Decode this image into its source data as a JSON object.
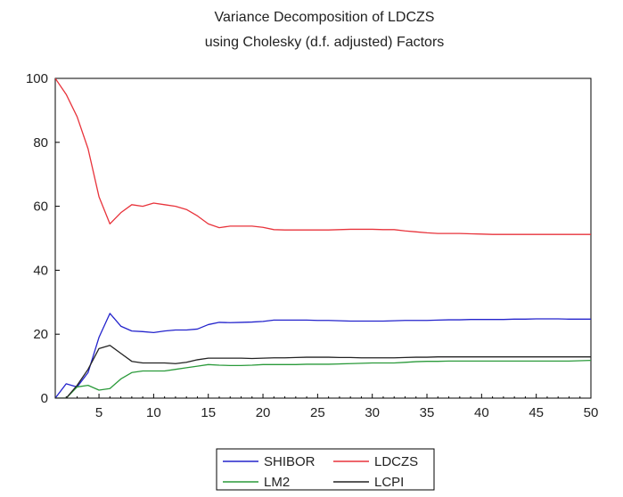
{
  "chart_data": {
    "type": "line",
    "title_lines": [
      "Variance Decomposition of LDCZS",
      "using Cholesky (d.f. adjusted) Factors"
    ],
    "xlabel": "",
    "ylabel": "",
    "xlim": [
      1,
      50
    ],
    "ylim": [
      0,
      100
    ],
    "xticks": [
      5,
      10,
      15,
      20,
      25,
      30,
      35,
      40,
      45,
      50
    ],
    "yticks": [
      0,
      20,
      40,
      60,
      80,
      100
    ],
    "grid": false,
    "legend_position": "bottom-center",
    "x": [
      1,
      2,
      3,
      4,
      5,
      6,
      7,
      8,
      9,
      10,
      11,
      12,
      13,
      14,
      15,
      16,
      17,
      18,
      19,
      20,
      21,
      22,
      23,
      24,
      25,
      26,
      27,
      28,
      29,
      30,
      31,
      32,
      33,
      34,
      35,
      36,
      37,
      38,
      39,
      40,
      41,
      42,
      43,
      44,
      45,
      46,
      47,
      48,
      49,
      50
    ],
    "series": [
      {
        "name": "SHIBOR",
        "color": "#2323cc",
        "values": [
          0,
          4.5,
          3.5,
          8,
          19,
          26.5,
          22.5,
          21,
          20.8,
          20.5,
          21,
          21.3,
          21.3,
          21.6,
          23,
          23.7,
          23.6,
          23.7,
          23.8,
          24,
          24.4,
          24.4,
          24.4,
          24.4,
          24.3,
          24.3,
          24.2,
          24.1,
          24.1,
          24.1,
          24.1,
          24.2,
          24.3,
          24.3,
          24.3,
          24.4,
          24.5,
          24.5,
          24.6,
          24.6,
          24.6,
          24.6,
          24.7,
          24.7,
          24.8,
          24.8,
          24.8,
          24.7,
          24.7,
          24.7
        ]
      },
      {
        "name": "LDCZS",
        "color": "#e8333b",
        "values": [
          100,
          95,
          88,
          78,
          63,
          54.5,
          58,
          60.5,
          60,
          61,
          60.5,
          60,
          59,
          57,
          54.5,
          53.3,
          53.8,
          53.8,
          53.8,
          53.4,
          52.7,
          52.6,
          52.6,
          52.6,
          52.6,
          52.6,
          52.7,
          52.8,
          52.8,
          52.8,
          52.7,
          52.7,
          52.3,
          52,
          51.7,
          51.5,
          51.5,
          51.5,
          51.4,
          51.3,
          51.2,
          51.2,
          51.2,
          51.2,
          51.2,
          51.2,
          51.2,
          51.2,
          51.2,
          51.2
        ]
      },
      {
        "name": "LM2",
        "color": "#2a9a3a",
        "values": [
          0,
          0,
          3.5,
          4,
          2.5,
          3,
          6,
          8,
          8.5,
          8.5,
          8.5,
          9,
          9.5,
          10,
          10.5,
          10.3,
          10.2,
          10.2,
          10.3,
          10.5,
          10.5,
          10.5,
          10.5,
          10.6,
          10.6,
          10.6,
          10.7,
          10.8,
          10.9,
          11,
          11,
          11,
          11.2,
          11.4,
          11.5,
          11.5,
          11.6,
          11.6,
          11.6,
          11.6,
          11.6,
          11.6,
          11.6,
          11.6,
          11.6,
          11.6,
          11.6,
          11.6,
          11.7,
          11.8
        ]
      },
      {
        "name": "LCPI",
        "color": "#222222",
        "values": [
          0,
          0,
          4,
          9,
          15.5,
          16.5,
          14,
          11.5,
          11,
          11,
          11,
          10.8,
          11.2,
          12,
          12.5,
          12.5,
          12.5,
          12.5,
          12.4,
          12.5,
          12.6,
          12.6,
          12.7,
          12.8,
          12.8,
          12.8,
          12.7,
          12.7,
          12.6,
          12.6,
          12.6,
          12.6,
          12.7,
          12.8,
          12.8,
          12.9,
          12.9,
          12.9,
          12.9,
          12.9,
          12.9,
          12.9,
          12.9,
          12.9,
          12.9,
          12.9,
          12.9,
          12.9,
          12.9,
          12.9
        ]
      }
    ]
  }
}
